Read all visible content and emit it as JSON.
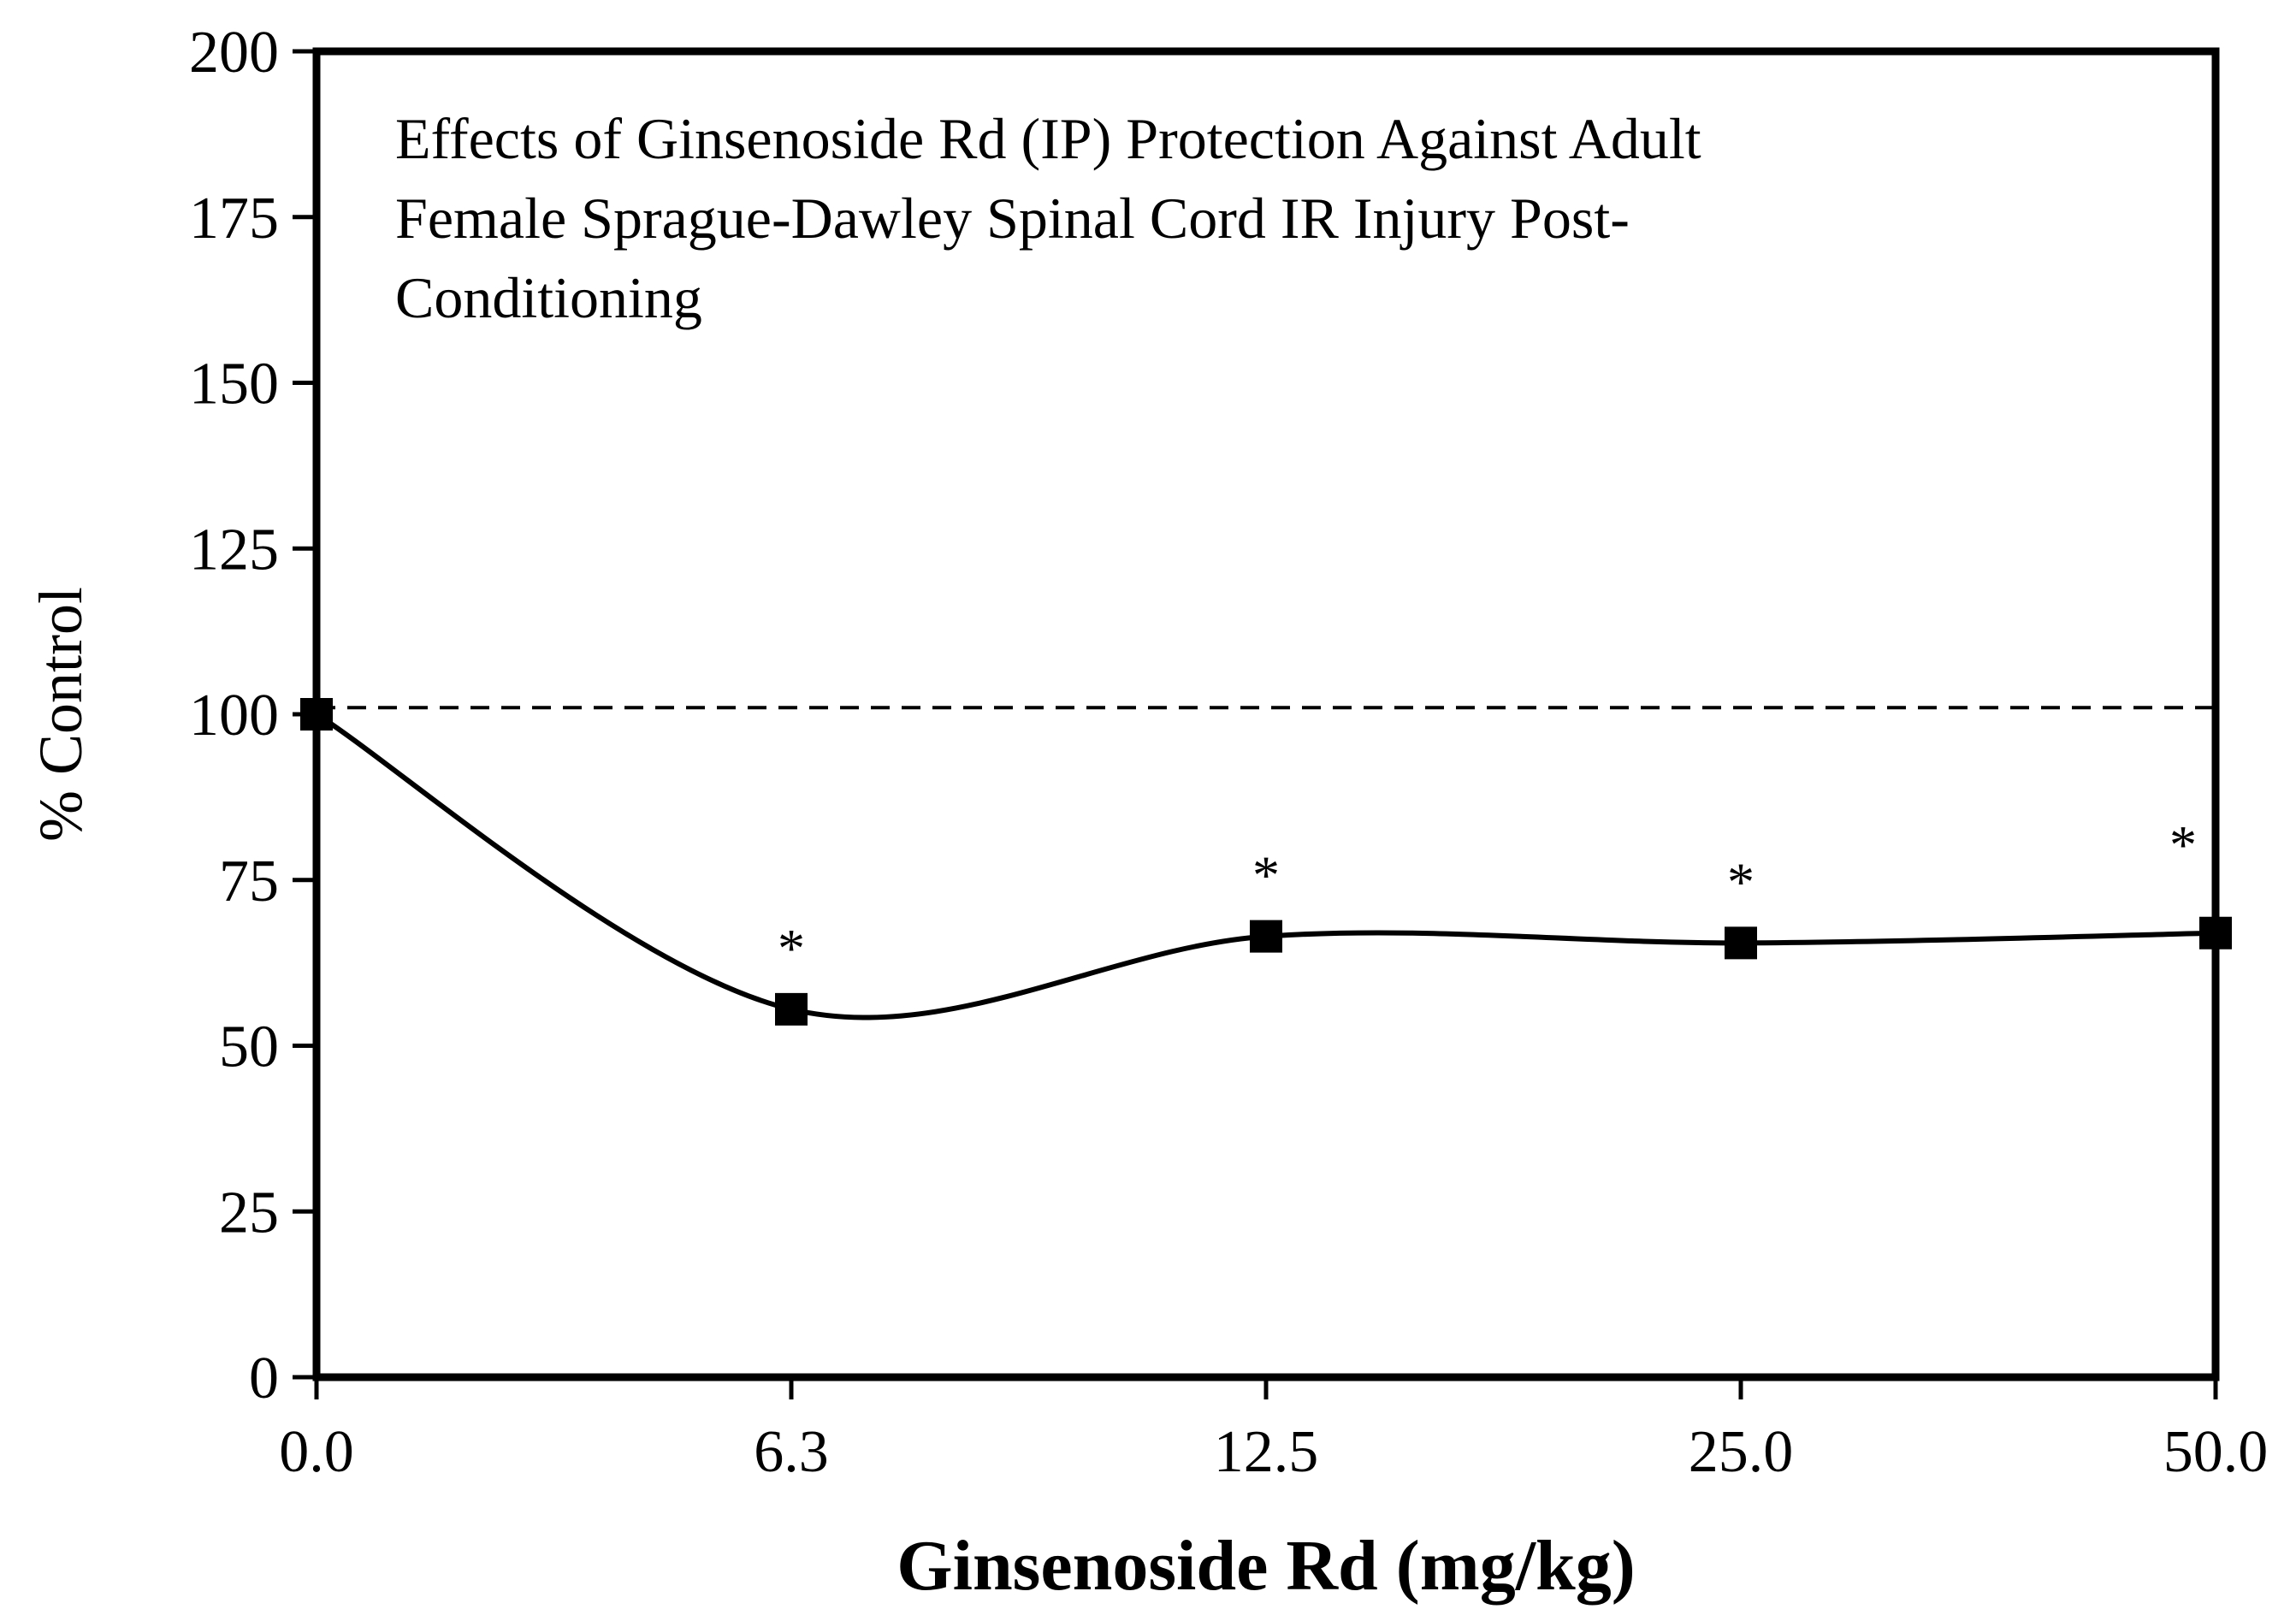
{
  "chart_data": {
    "type": "line",
    "title": "Effects of Ginsenoside Rd (IP) Protection Against Adult Female Sprague-Dawley Spinal Cord IR Injury Post-Conditioning",
    "title_lines": [
      "Effects of Ginsenoside Rd (IP) Protection Against Adult",
      "Female Sprague-Dawley Spinal Cord IR Injury Post-",
      "Conditioning"
    ],
    "xlabel": "Ginsenoside Rd (mg/kg)",
    "ylabel": "% Control",
    "categories": [
      "0.0",
      "6.3",
      "12.5",
      "25.0",
      "50.0"
    ],
    "ylim": [
      0,
      200
    ],
    "yticks": [
      "0",
      "25",
      "50",
      "75",
      "100",
      "125",
      "150",
      "175",
      "200"
    ],
    "yticks_values": [
      0,
      25,
      50,
      75,
      100,
      125,
      150,
      175,
      200
    ],
    "series": [
      {
        "name": "Ginsenoside Rd",
        "values": [
          100,
          55.5,
          66.5,
          65.5,
          67
        ],
        "significance": [
          "",
          "*",
          "*",
          "*",
          "*"
        ],
        "color": "#000000",
        "marker": "square",
        "smooth": true
      }
    ],
    "reference_line": {
      "value": 101,
      "style": "dashed",
      "color": "#000000"
    },
    "grid": false,
    "legend": "none"
  }
}
